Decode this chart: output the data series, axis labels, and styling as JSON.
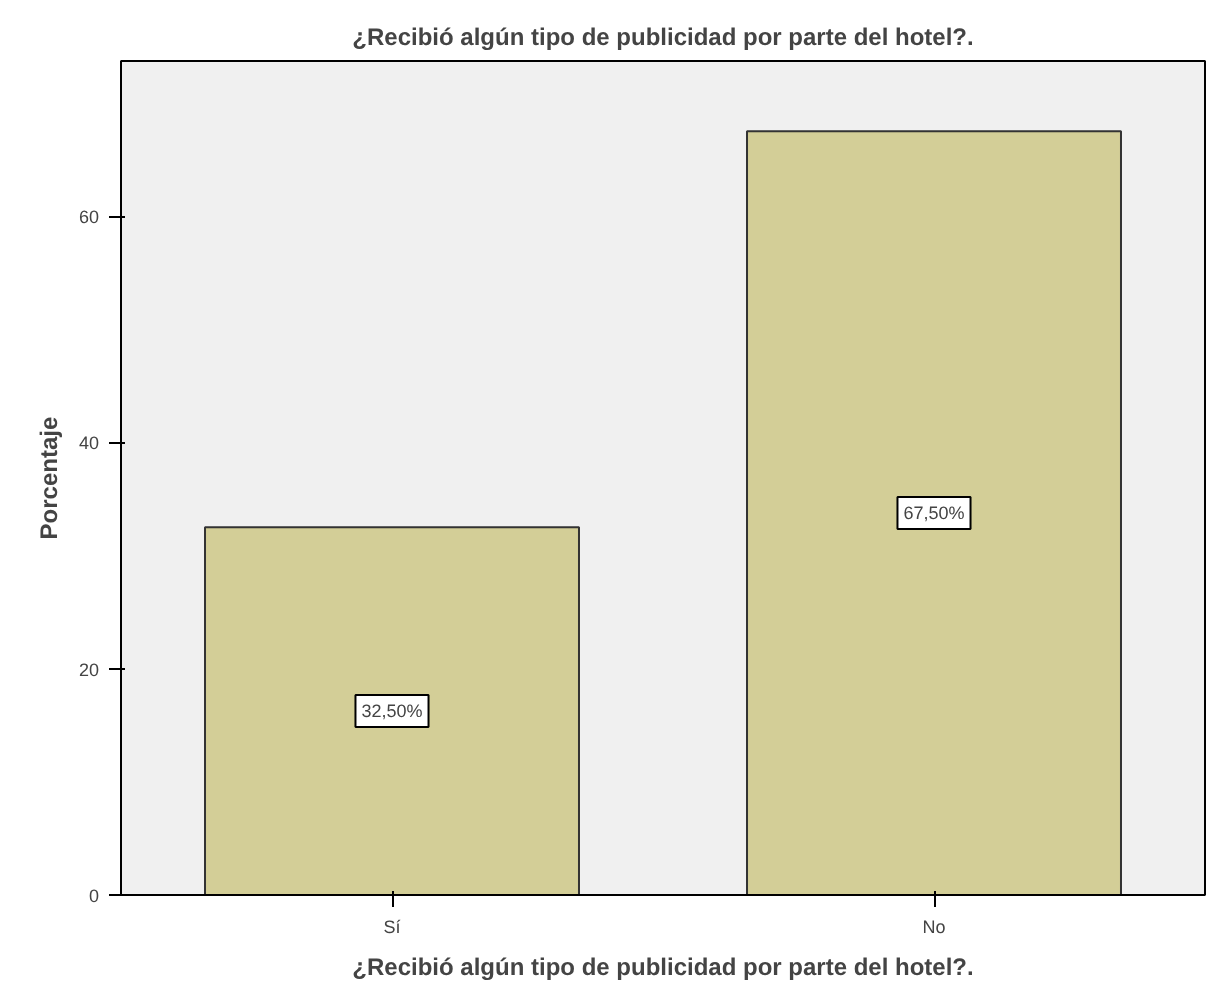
{
  "chart_data": {
    "type": "bar",
    "title": "¿Recibió algún tipo de publicidad por parte del hotel?.",
    "xlabel": "¿Recibió algún tipo de publicidad por parte del hotel?.",
    "ylabel": "Porcentaje",
    "categories": [
      "Sí",
      "No"
    ],
    "values": [
      32.5,
      67.5
    ],
    "value_labels": [
      "32,50%",
      "67,50%"
    ],
    "color": "#d3ce97",
    "ylim": [
      0,
      73.7
    ],
    "yticks": [
      0,
      20,
      40,
      60
    ],
    "grid": false
  }
}
